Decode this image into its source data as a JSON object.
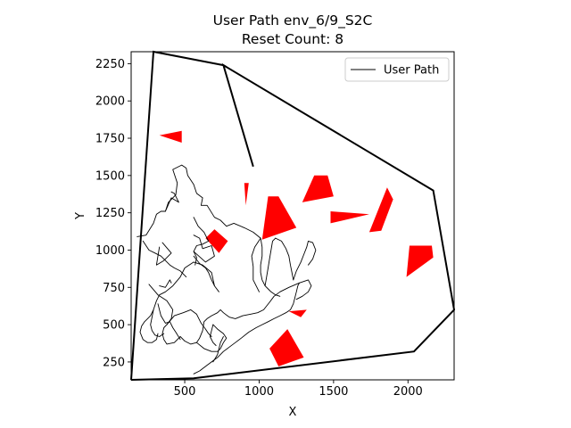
{
  "chart_data": {
    "type": "line",
    "title": "User Path env_6/9_S2C",
    "subtitle": "Reset Count: 8",
    "xlabel": "X",
    "ylabel": "Y",
    "xlim": [
      140,
      2310
    ],
    "ylim": [
      130,
      2330
    ],
    "xticks": [
      500,
      1000,
      1500,
      2000
    ],
    "yticks": [
      250,
      500,
      750,
      1000,
      1250,
      1500,
      1750,
      2000,
      2250
    ],
    "legend": {
      "position": "upper right",
      "entries": [
        "User Path"
      ]
    },
    "boundary": {
      "color": "#000000",
      "points": [
        [
          140,
          130
        ],
        [
          290,
          2330
        ],
        [
          760,
          2240
        ],
        [
          960,
          1560
        ],
        [
          760,
          2240
        ],
        [
          2170,
          1400
        ],
        [
          2310,
          600
        ],
        [
          2040,
          320
        ],
        [
          560,
          140
        ],
        [
          140,
          130
        ]
      ]
    },
    "obstacles": {
      "color": "#ff0000",
      "polygons": [
        [
          [
            330,
            1770
          ],
          [
            480,
            1800
          ],
          [
            480,
            1720
          ]
        ],
        [
          [
            640,
            1080
          ],
          [
            700,
            1140
          ],
          [
            790,
            1060
          ],
          [
            730,
            980
          ]
        ],
        [
          [
            900,
            1450
          ],
          [
            930,
            1450
          ],
          [
            910,
            1300
          ]
        ],
        [
          [
            1020,
            1070
          ],
          [
            1250,
            1150
          ],
          [
            1130,
            1360
          ],
          [
            1060,
            1360
          ]
        ],
        [
          [
            1290,
            1320
          ],
          [
            1500,
            1360
          ],
          [
            1460,
            1500
          ],
          [
            1370,
            1500
          ]
        ],
        [
          [
            1480,
            1180
          ],
          [
            1740,
            1240
          ],
          [
            1480,
            1260
          ]
        ],
        [
          [
            1740,
            1120
          ],
          [
            1820,
            1130
          ],
          [
            1900,
            1340
          ],
          [
            1860,
            1420
          ]
        ],
        [
          [
            1990,
            820
          ],
          [
            2170,
            950
          ],
          [
            2160,
            1030
          ],
          [
            2010,
            1030
          ]
        ],
        [
          [
            1070,
            340
          ],
          [
            1190,
            470
          ],
          [
            1300,
            280
          ],
          [
            1130,
            220
          ]
        ],
        [
          [
            1200,
            590
          ],
          [
            1280,
            550
          ],
          [
            1320,
            600
          ]
        ]
      ]
    },
    "series": [
      {
        "name": "User Path",
        "color": "#000000",
        "segments": [
          [
            [
              180,
              1090
            ],
            [
              240,
              1100
            ],
            [
              290,
              1180
            ],
            [
              310,
              1240
            ],
            [
              340,
              1260
            ],
            [
              370,
              1260
            ],
            [
              390,
              1320
            ],
            [
              440,
              1370
            ],
            [
              450,
              1450
            ],
            [
              420,
              1540
            ],
            [
              480,
              1570
            ],
            [
              510,
              1550
            ],
            [
              520,
              1500
            ],
            [
              560,
              1440
            ],
            [
              580,
              1380
            ],
            [
              620,
              1350
            ],
            [
              610,
              1300
            ],
            [
              650,
              1300
            ],
            [
              700,
              1220
            ],
            [
              740,
              1200
            ],
            [
              780,
              1160
            ],
            [
              830,
              1180
            ],
            [
              900,
              1150
            ],
            [
              960,
              1120
            ],
            [
              1010,
              1080
            ]
          ],
          [
            [
              220,
              1060
            ],
            [
              260,
              1000
            ],
            [
              300,
              980
            ],
            [
              340,
              960
            ],
            [
              400,
              900
            ],
            [
              430,
              880
            ],
            [
              470,
              860
            ],
            [
              510,
              820
            ]
          ],
          [
            [
              330,
              1020
            ],
            [
              320,
              960
            ],
            [
              310,
              900
            ],
            [
              360,
              930
            ],
            [
              410,
              980
            ],
            [
              350,
              1050
            ]
          ],
          [
            [
              370,
              1260
            ],
            [
              410,
              1350
            ],
            [
              460,
              1320
            ],
            [
              430,
              1380
            ],
            [
              410,
              1390
            ]
          ],
          [
            [
              560,
              1220
            ],
            [
              590,
              1160
            ],
            [
              630,
              1120
            ],
            [
              660,
              1060
            ],
            [
              620,
              1040
            ],
            [
              580,
              1030
            ],
            [
              560,
              990
            ],
            [
              580,
              950
            ],
            [
              570,
              900
            ]
          ],
          [
            [
              560,
              1100
            ],
            [
              600,
              1080
            ],
            [
              620,
              1010
            ],
            [
              680,
              1030
            ],
            [
              700,
              960
            ],
            [
              640,
              920
            ],
            [
              560,
              990
            ]
          ],
          [
            [
              560,
              960
            ],
            [
              600,
              910
            ],
            [
              640,
              880
            ],
            [
              660,
              850
            ],
            [
              680,
              800
            ],
            [
              700,
              760
            ],
            [
              730,
              720
            ]
          ],
          [
            [
              700,
              760
            ],
            [
              680,
              850
            ],
            [
              620,
              900
            ],
            [
              560,
              920
            ],
            [
              500,
              880
            ],
            [
              470,
              820
            ],
            [
              420,
              760
            ],
            [
              370,
              720
            ],
            [
              330,
              700
            ],
            [
              310,
              660
            ],
            [
              290,
              600
            ],
            [
              280,
              550
            ],
            [
              270,
              500
            ],
            [
              280,
              460
            ],
            [
              300,
              430
            ],
            [
              330,
              420
            ],
            [
              360,
              440
            ]
          ],
          [
            [
              260,
              770
            ],
            [
              320,
              700
            ],
            [
              380,
              660
            ],
            [
              420,
              600
            ],
            [
              410,
              540
            ],
            [
              380,
              500
            ],
            [
              360,
              480
            ],
            [
              350,
              440
            ],
            [
              360,
              400
            ],
            [
              380,
              370
            ],
            [
              430,
              380
            ],
            [
              470,
              420
            ]
          ],
          [
            [
              330,
              760
            ],
            [
              370,
              750
            ],
            [
              400,
              800
            ],
            [
              410,
              780
            ]
          ],
          [
            [
              320,
              640
            ],
            [
              340,
              560
            ],
            [
              370,
              510
            ],
            [
              400,
              520
            ],
            [
              420,
              480
            ],
            [
              440,
              450
            ],
            [
              470,
              400
            ]
          ],
          [
            [
              290,
              600
            ],
            [
              270,
              560
            ],
            [
              250,
              540
            ],
            [
              230,
              520
            ],
            [
              210,
              490
            ],
            [
              200,
              450
            ],
            [
              220,
              400
            ],
            [
              250,
              380
            ],
            [
              280,
              380
            ],
            [
              310,
              400
            ],
            [
              320,
              440
            ]
          ],
          [
            [
              380,
              500
            ],
            [
              430,
              560
            ],
            [
              490,
              580
            ],
            [
              540,
              600
            ],
            [
              580,
              570
            ],
            [
              610,
              510
            ],
            [
              640,
              470
            ],
            [
              660,
              440
            ],
            [
              680,
              420
            ]
          ],
          [
            [
              470,
              420
            ],
            [
              500,
              390
            ],
            [
              540,
              370
            ],
            [
              580,
              380
            ],
            [
              600,
              410
            ],
            [
              620,
              460
            ],
            [
              630,
              520
            ],
            [
              650,
              540
            ],
            [
              680,
              560
            ],
            [
              720,
              580
            ],
            [
              740,
              600
            ],
            [
              760,
              580
            ],
            [
              800,
              550
            ],
            [
              840,
              540
            ],
            [
              890,
              560
            ],
            [
              940,
              570
            ],
            [
              990,
              580
            ],
            [
              1030,
              600
            ],
            [
              1070,
              650
            ],
            [
              1100,
              690
            ],
            [
              1140,
              720
            ],
            [
              1200,
              750
            ],
            [
              1270,
              780
            ],
            [
              1330,
              800
            ],
            [
              1350,
              760
            ],
            [
              1330,
              720
            ],
            [
              1290,
              690
            ],
            [
              1250,
              670
            ]
          ],
          [
            [
              580,
              380
            ],
            [
              630,
              340
            ],
            [
              680,
              320
            ],
            [
              720,
              320
            ],
            [
              740,
              340
            ],
            [
              760,
              380
            ],
            [
              780,
              410
            ],
            [
              760,
              440
            ],
            [
              720,
              470
            ],
            [
              690,
              500
            ]
          ],
          [
            [
              690,
              500
            ],
            [
              680,
              460
            ],
            [
              670,
              420
            ],
            [
              690,
              380
            ],
            [
              710,
              360
            ]
          ],
          [
            [
              560,
              170
            ],
            [
              600,
              190
            ],
            [
              640,
              220
            ],
            [
              680,
              250
            ],
            [
              720,
              280
            ],
            [
              760,
              320
            ],
            [
              800,
              350
            ],
            [
              840,
              380
            ],
            [
              880,
              410
            ],
            [
              930,
              450
            ],
            [
              980,
              480
            ],
            [
              1020,
              500
            ],
            [
              1060,
              520
            ],
            [
              1100,
              540
            ],
            [
              1140,
              560
            ],
            [
              1180,
              580
            ],
            [
              1210,
              600
            ],
            [
              1230,
              640
            ],
            [
              1240,
              680
            ],
            [
              1250,
              720
            ],
            [
              1260,
              760
            ],
            [
              1270,
              780
            ]
          ],
          [
            [
              1010,
              1080
            ],
            [
              1020,
              1020
            ],
            [
              1020,
              960
            ],
            [
              1010,
              900
            ],
            [
              1010,
              850
            ],
            [
              1020,
              800
            ],
            [
              1040,
              760
            ],
            [
              1060,
              740
            ],
            [
              1080,
              720
            ],
            [
              1110,
              700
            ],
            [
              1140,
              690
            ]
          ],
          [
            [
              1040,
              760
            ],
            [
              1050,
              820
            ],
            [
              1060,
              880
            ],
            [
              1070,
              940
            ],
            [
              1080,
              1000
            ],
            [
              1090,
              1060
            ],
            [
              1110,
              1080
            ]
          ],
          [
            [
              1110,
              1080
            ],
            [
              1150,
              1060
            ],
            [
              1180,
              1010
            ],
            [
              1200,
              960
            ],
            [
              1210,
              900
            ],
            [
              1220,
              850
            ],
            [
              1230,
              800
            ]
          ],
          [
            [
              1230,
              800
            ],
            [
              1250,
              860
            ],
            [
              1280,
              920
            ],
            [
              1300,
              970
            ],
            [
              1320,
              1020
            ],
            [
              1330,
              1060
            ],
            [
              1360,
              1050
            ],
            [
              1380,
              1000
            ],
            [
              1360,
              940
            ],
            [
              1330,
              900
            ]
          ],
          [
            [
              1000,
              720
            ],
            [
              960,
              800
            ],
            [
              960,
              890
            ],
            [
              950,
              960
            ],
            [
              970,
              1020
            ],
            [
              1010,
              1080
            ]
          ],
          [
            [
              690,
              250
            ],
            [
              720,
              300
            ],
            [
              740,
              380
            ],
            [
              760,
              420
            ]
          ]
        ]
      }
    ]
  }
}
